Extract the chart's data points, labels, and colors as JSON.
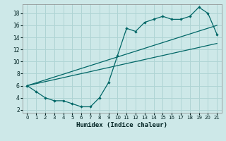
{
  "xlabel": "Humidex (Indice chaleur)",
  "bg_color": "#cde8e8",
  "grid_color": "#afd4d4",
  "line_color": "#006666",
  "xlim": [
    -0.5,
    21.5
  ],
  "ylim": [
    1.5,
    19.5
  ],
  "xticks": [
    0,
    1,
    2,
    3,
    4,
    5,
    6,
    7,
    8,
    9,
    10,
    11,
    12,
    13,
    14,
    15,
    16,
    17,
    18,
    19,
    20,
    21
  ],
  "yticks": [
    2,
    4,
    6,
    8,
    10,
    12,
    14,
    16,
    18
  ],
  "line1_x": [
    0,
    1,
    2,
    3,
    4,
    5,
    6,
    7,
    8,
    9,
    10,
    11,
    12,
    13,
    14,
    15,
    16,
    17,
    18,
    19,
    20,
    21
  ],
  "line1_y": [
    6,
    5,
    4,
    3.5,
    3.5,
    3,
    2.5,
    2.5,
    4,
    6.5,
    11,
    15.5,
    15,
    16.5,
    17,
    17.5,
    17,
    17,
    17.5,
    19,
    18,
    14.5
  ],
  "line2_x": [
    0,
    1,
    2,
    3,
    4,
    5,
    6,
    7,
    8,
    9,
    10,
    11,
    12,
    13,
    14,
    15,
    16,
    17,
    18,
    19,
    20,
    21
  ],
  "line2_y": [
    6,
    6.47,
    6.95,
    7.43,
    7.9,
    8.38,
    8.86,
    9.33,
    9.81,
    10.29,
    10.76,
    11.24,
    11.71,
    12.19,
    12.67,
    13.14,
    13.62,
    14.1,
    14.57,
    15.05,
    15.52,
    16.0
  ],
  "line3_x": [
    0,
    1,
    2,
    3,
    4,
    5,
    6,
    7,
    8,
    9,
    10,
    11,
    12,
    13,
    14,
    15,
    16,
    17,
    18,
    19,
    20,
    21
  ],
  "line3_y": [
    6,
    6.33,
    6.67,
    7.0,
    7.33,
    7.67,
    8.0,
    8.33,
    8.67,
    9.0,
    9.33,
    9.67,
    10.0,
    10.33,
    10.67,
    11.0,
    11.33,
    11.67,
    12.0,
    12.33,
    12.67,
    13.0
  ]
}
